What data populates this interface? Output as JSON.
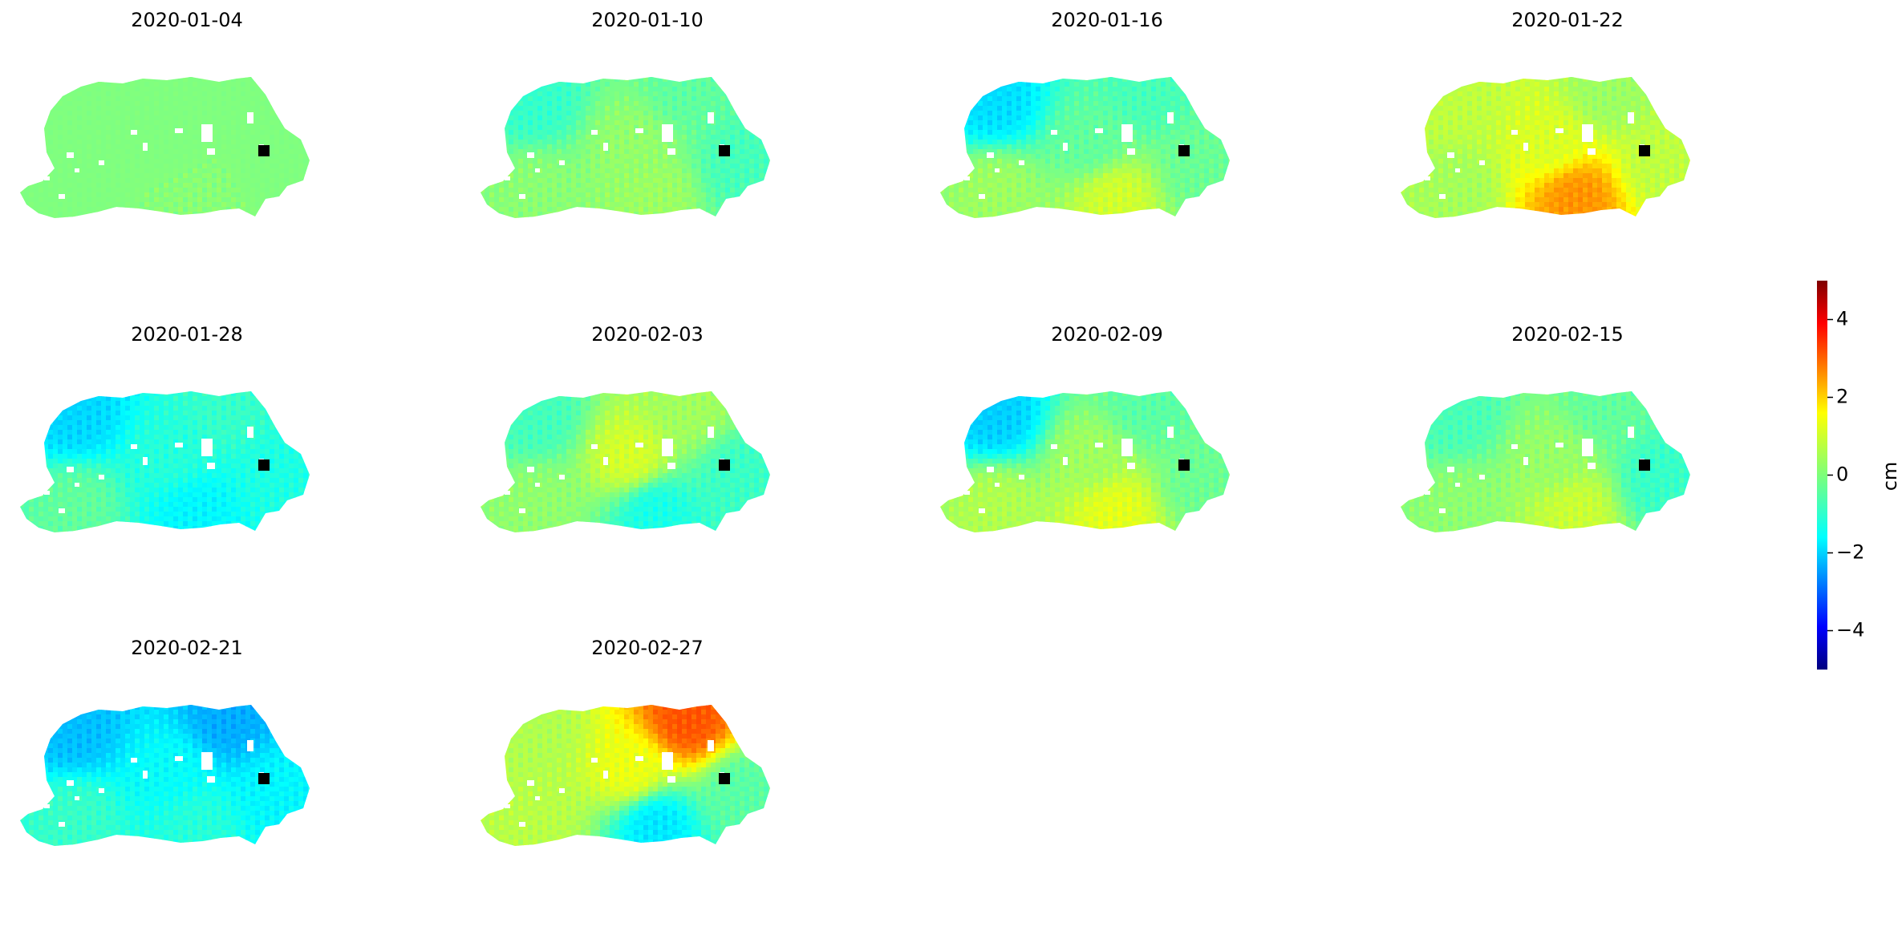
{
  "chart_data": {
    "type": "heatmap",
    "description_of_panels": "map panels",
    "panels": [
      {
        "title": "2020-01-04",
        "mean": 0.0,
        "north_west": 0.0,
        "center": 0.0,
        "south_center": 0.1,
        "north_east": 0.0,
        "south_west": 0.0,
        "east": 0.0
      },
      {
        "title": "2020-01-10",
        "mean": -0.4,
        "north_west": -0.8,
        "center": 0.3,
        "south_center": 0.4,
        "north_east": -0.3,
        "south_west": 0.2,
        "east": -0.6
      },
      {
        "title": "2020-01-16",
        "mean": -0.3,
        "north_west": -1.8,
        "center": -0.3,
        "south_center": 1.0,
        "north_east": -0.6,
        "south_west": 0.4,
        "east": -0.2
      },
      {
        "title": "2020-01-22",
        "mean": 0.7,
        "north_west": 0.6,
        "center": 0.9,
        "south_center": 2.6,
        "north_east": 0.2,
        "south_west": 0.3,
        "east": 0.6
      },
      {
        "title": "2020-01-28",
        "mean": -0.8,
        "north_west": -1.8,
        "center": -0.9,
        "south_center": -1.4,
        "north_east": -0.7,
        "south_west": -0.2,
        "east": -1.0
      },
      {
        "title": "2020-02-03",
        "mean": 0.0,
        "north_west": -0.7,
        "center": 1.0,
        "south_center": -1.2,
        "north_east": 0.4,
        "south_west": 0.2,
        "east": -0.8
      },
      {
        "title": "2020-02-09",
        "mean": -0.2,
        "north_west": -2.0,
        "center": 0.4,
        "south_center": 1.2,
        "north_east": -0.4,
        "south_west": 0.6,
        "east": -0.2
      },
      {
        "title": "2020-02-15",
        "mean": -0.2,
        "north_west": -0.6,
        "center": 0.3,
        "south_center": 0.9,
        "north_east": -0.3,
        "south_west": 0.2,
        "east": -0.8
      },
      {
        "title": "2020-02-21",
        "mean": -1.3,
        "north_west": -2.0,
        "center": -1.2,
        "south_center": -0.8,
        "north_east": -2.2,
        "south_west": -0.6,
        "east": -1.3
      },
      {
        "title": "2020-02-27",
        "mean": 0.3,
        "north_west": 0.5,
        "center": 1.2,
        "south_center": -1.8,
        "north_east": 3.4,
        "south_west": 0.6,
        "east": -0.5
      }
    ],
    "colorbar": {
      "label": "cm",
      "range": [
        -5,
        5
      ],
      "ticks": [
        4,
        2,
        0,
        -2,
        -4
      ],
      "tick_labels": [
        "4",
        "2",
        "0",
        "−2",
        "−4"
      ],
      "colormap": "jet"
    },
    "reference_marker": {
      "shape": "square",
      "color": "#000000"
    }
  }
}
